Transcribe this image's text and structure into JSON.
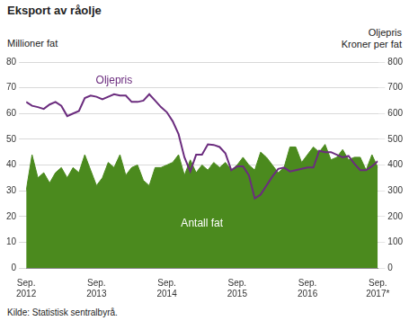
{
  "chart_data": {
    "type": "line",
    "title": "Eksport av råolje",
    "ylabel": "Millioner fat",
    "y2label": [
      "Oljepris",
      "Kroner per fat"
    ],
    "source": "Kilde: Statistisk sentralbyrå.",
    "categories": [
      "Sep.\n2012",
      null,
      null,
      null,
      null,
      null,
      null,
      null,
      null,
      null,
      null,
      null,
      "Sep.\n2013",
      null,
      null,
      null,
      null,
      null,
      null,
      null,
      null,
      null,
      null,
      null,
      "Sep.\n2014",
      null,
      null,
      null,
      null,
      null,
      null,
      null,
      null,
      null,
      null,
      null,
      "Sep.\n2015",
      null,
      null,
      null,
      null,
      null,
      null,
      null,
      null,
      null,
      null,
      null,
      "Sep.\n2016",
      null,
      null,
      null,
      null,
      null,
      null,
      null,
      null,
      null,
      null,
      null,
      "Sep.\n2017*"
    ],
    "series": [
      {
        "name": "Antall fat",
        "type": "area",
        "color": "#4b8a1e",
        "values": [
          30,
          44,
          35,
          37,
          33,
          37,
          39,
          35,
          39,
          37,
          44,
          38,
          32,
          35,
          41,
          39,
          44,
          36,
          39,
          40,
          34,
          32,
          39,
          39,
          40,
          41,
          44,
          36,
          42,
          37,
          40,
          38,
          41,
          39,
          41,
          38,
          40,
          43,
          40,
          38,
          45,
          43,
          40,
          37,
          39,
          47,
          47,
          41,
          44,
          47,
          45,
          48,
          42,
          43,
          46,
          42,
          43,
          43,
          38,
          44,
          39
        ]
      },
      {
        "name": "Oljepris",
        "type": "line",
        "color": "#6b2c7e",
        "axis": "y2",
        "values": [
          645,
          630,
          625,
          618,
          635,
          645,
          630,
          590,
          600,
          610,
          660,
          670,
          665,
          655,
          665,
          675,
          670,
          670,
          645,
          645,
          650,
          675,
          650,
          625,
          605,
          570,
          520,
          430,
          375,
          440,
          440,
          480,
          478,
          470,
          445,
          380,
          395,
          395,
          360,
          270,
          285,
          320,
          355,
          385,
          390,
          375,
          380,
          385,
          390,
          390,
          455,
          450,
          450,
          440,
          430,
          435,
          405,
          380,
          380,
          395,
          415
        ]
      }
    ],
    "ylim": [
      0,
      80
    ],
    "yticks": [
      0,
      10,
      20,
      30,
      40,
      50,
      60,
      70,
      80
    ],
    "y2lim": [
      0,
      800
    ],
    "y2ticks": [
      0,
      100,
      200,
      300,
      400,
      500,
      600,
      700,
      800
    ],
    "grid": true
  }
}
